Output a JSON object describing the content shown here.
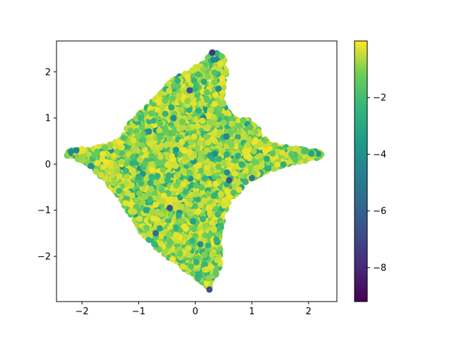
{
  "chart_data": {
    "type": "scatter",
    "title": "",
    "xlabel": "",
    "ylabel": "",
    "xlim": [
      -2.45,
      2.5
    ],
    "ylim": [
      -2.98,
      2.67
    ],
    "x_ticks": [
      -2,
      -1,
      0,
      1,
      2
    ],
    "y_ticks": [
      -2,
      -1,
      0,
      1,
      2
    ],
    "x_tick_labels": [
      "−2",
      "−1",
      "0",
      "1",
      "2"
    ],
    "y_tick_labels": [
      "−2",
      "−1",
      "0",
      "1",
      "2"
    ],
    "grid": false,
    "colormap": "viridis",
    "colorbar": {
      "range": [
        -9.2,
        0.0
      ],
      "ticks": [
        -8,
        -6,
        -4,
        -2
      ],
      "tick_labels": [
        "−8",
        "−6",
        "−4",
        "−2"
      ]
    },
    "point_count": 6000,
    "region_outline": [
      [
        -2.25,
        0.3
      ],
      [
        -1.85,
        0.35
      ],
      [
        -1.55,
        0.4
      ],
      [
        -1.3,
        0.55
      ],
      [
        -1.15,
        0.9
      ],
      [
        -0.85,
        1.25
      ],
      [
        -0.6,
        1.55
      ],
      [
        -0.4,
        1.85
      ],
      [
        -0.1,
        2.0
      ],
      [
        0.15,
        2.25
      ],
      [
        0.3,
        2.42
      ],
      [
        0.5,
        2.4
      ],
      [
        0.55,
        2.0
      ],
      [
        0.5,
        1.65
      ],
      [
        0.5,
        1.3
      ],
      [
        0.65,
        1.0
      ],
      [
        0.95,
        0.95
      ],
      [
        1.1,
        0.8
      ],
      [
        1.2,
        0.6
      ],
      [
        1.3,
        0.45
      ],
      [
        1.6,
        0.37
      ],
      [
        1.9,
        0.32
      ],
      [
        2.25,
        0.25
      ],
      [
        2.2,
        0.15
      ],
      [
        1.85,
        0.05
      ],
      [
        1.5,
        -0.05
      ],
      [
        1.2,
        -0.2
      ],
      [
        0.95,
        -0.35
      ],
      [
        0.8,
        -0.55
      ],
      [
        0.6,
        -0.8
      ],
      [
        0.5,
        -1.1
      ],
      [
        0.45,
        -1.5
      ],
      [
        0.45,
        -2.0
      ],
      [
        0.42,
        -2.3
      ],
      [
        0.3,
        -2.5
      ],
      [
        0.25,
        -2.72
      ],
      [
        0.15,
        -2.6
      ],
      [
        -0.1,
        -2.35
      ],
      [
        -0.4,
        -2.1
      ],
      [
        -0.7,
        -1.8
      ],
      [
        -0.95,
        -1.5
      ],
      [
        -1.15,
        -1.1
      ],
      [
        -1.35,
        -0.7
      ],
      [
        -1.6,
        -0.35
      ],
      [
        -1.85,
        -0.05
      ],
      [
        -2.05,
        0.1
      ],
      [
        -2.3,
        0.2
      ]
    ],
    "highlight_points": [
      {
        "x": 0.3,
        "y": 2.42,
        "value": -7.5
      },
      {
        "x": -0.1,
        "y": 1.6,
        "value": -6.5
      },
      {
        "x": 0.25,
        "y": -2.72,
        "value": -6.8
      },
      {
        "x": -0.45,
        "y": -0.95,
        "value": -6.8
      },
      {
        "x": 0.6,
        "y": -0.35,
        "value": -6.5
      },
      {
        "x": 1.0,
        "y": -0.3,
        "value": -5.0
      },
      {
        "x": -2.1,
        "y": 0.3,
        "value": -4.5
      },
      {
        "x": 0.55,
        "y": 0.6,
        "value": -4.5
      },
      {
        "x": -0.7,
        "y": -1.5,
        "value": -5.5
      }
    ]
  }
}
